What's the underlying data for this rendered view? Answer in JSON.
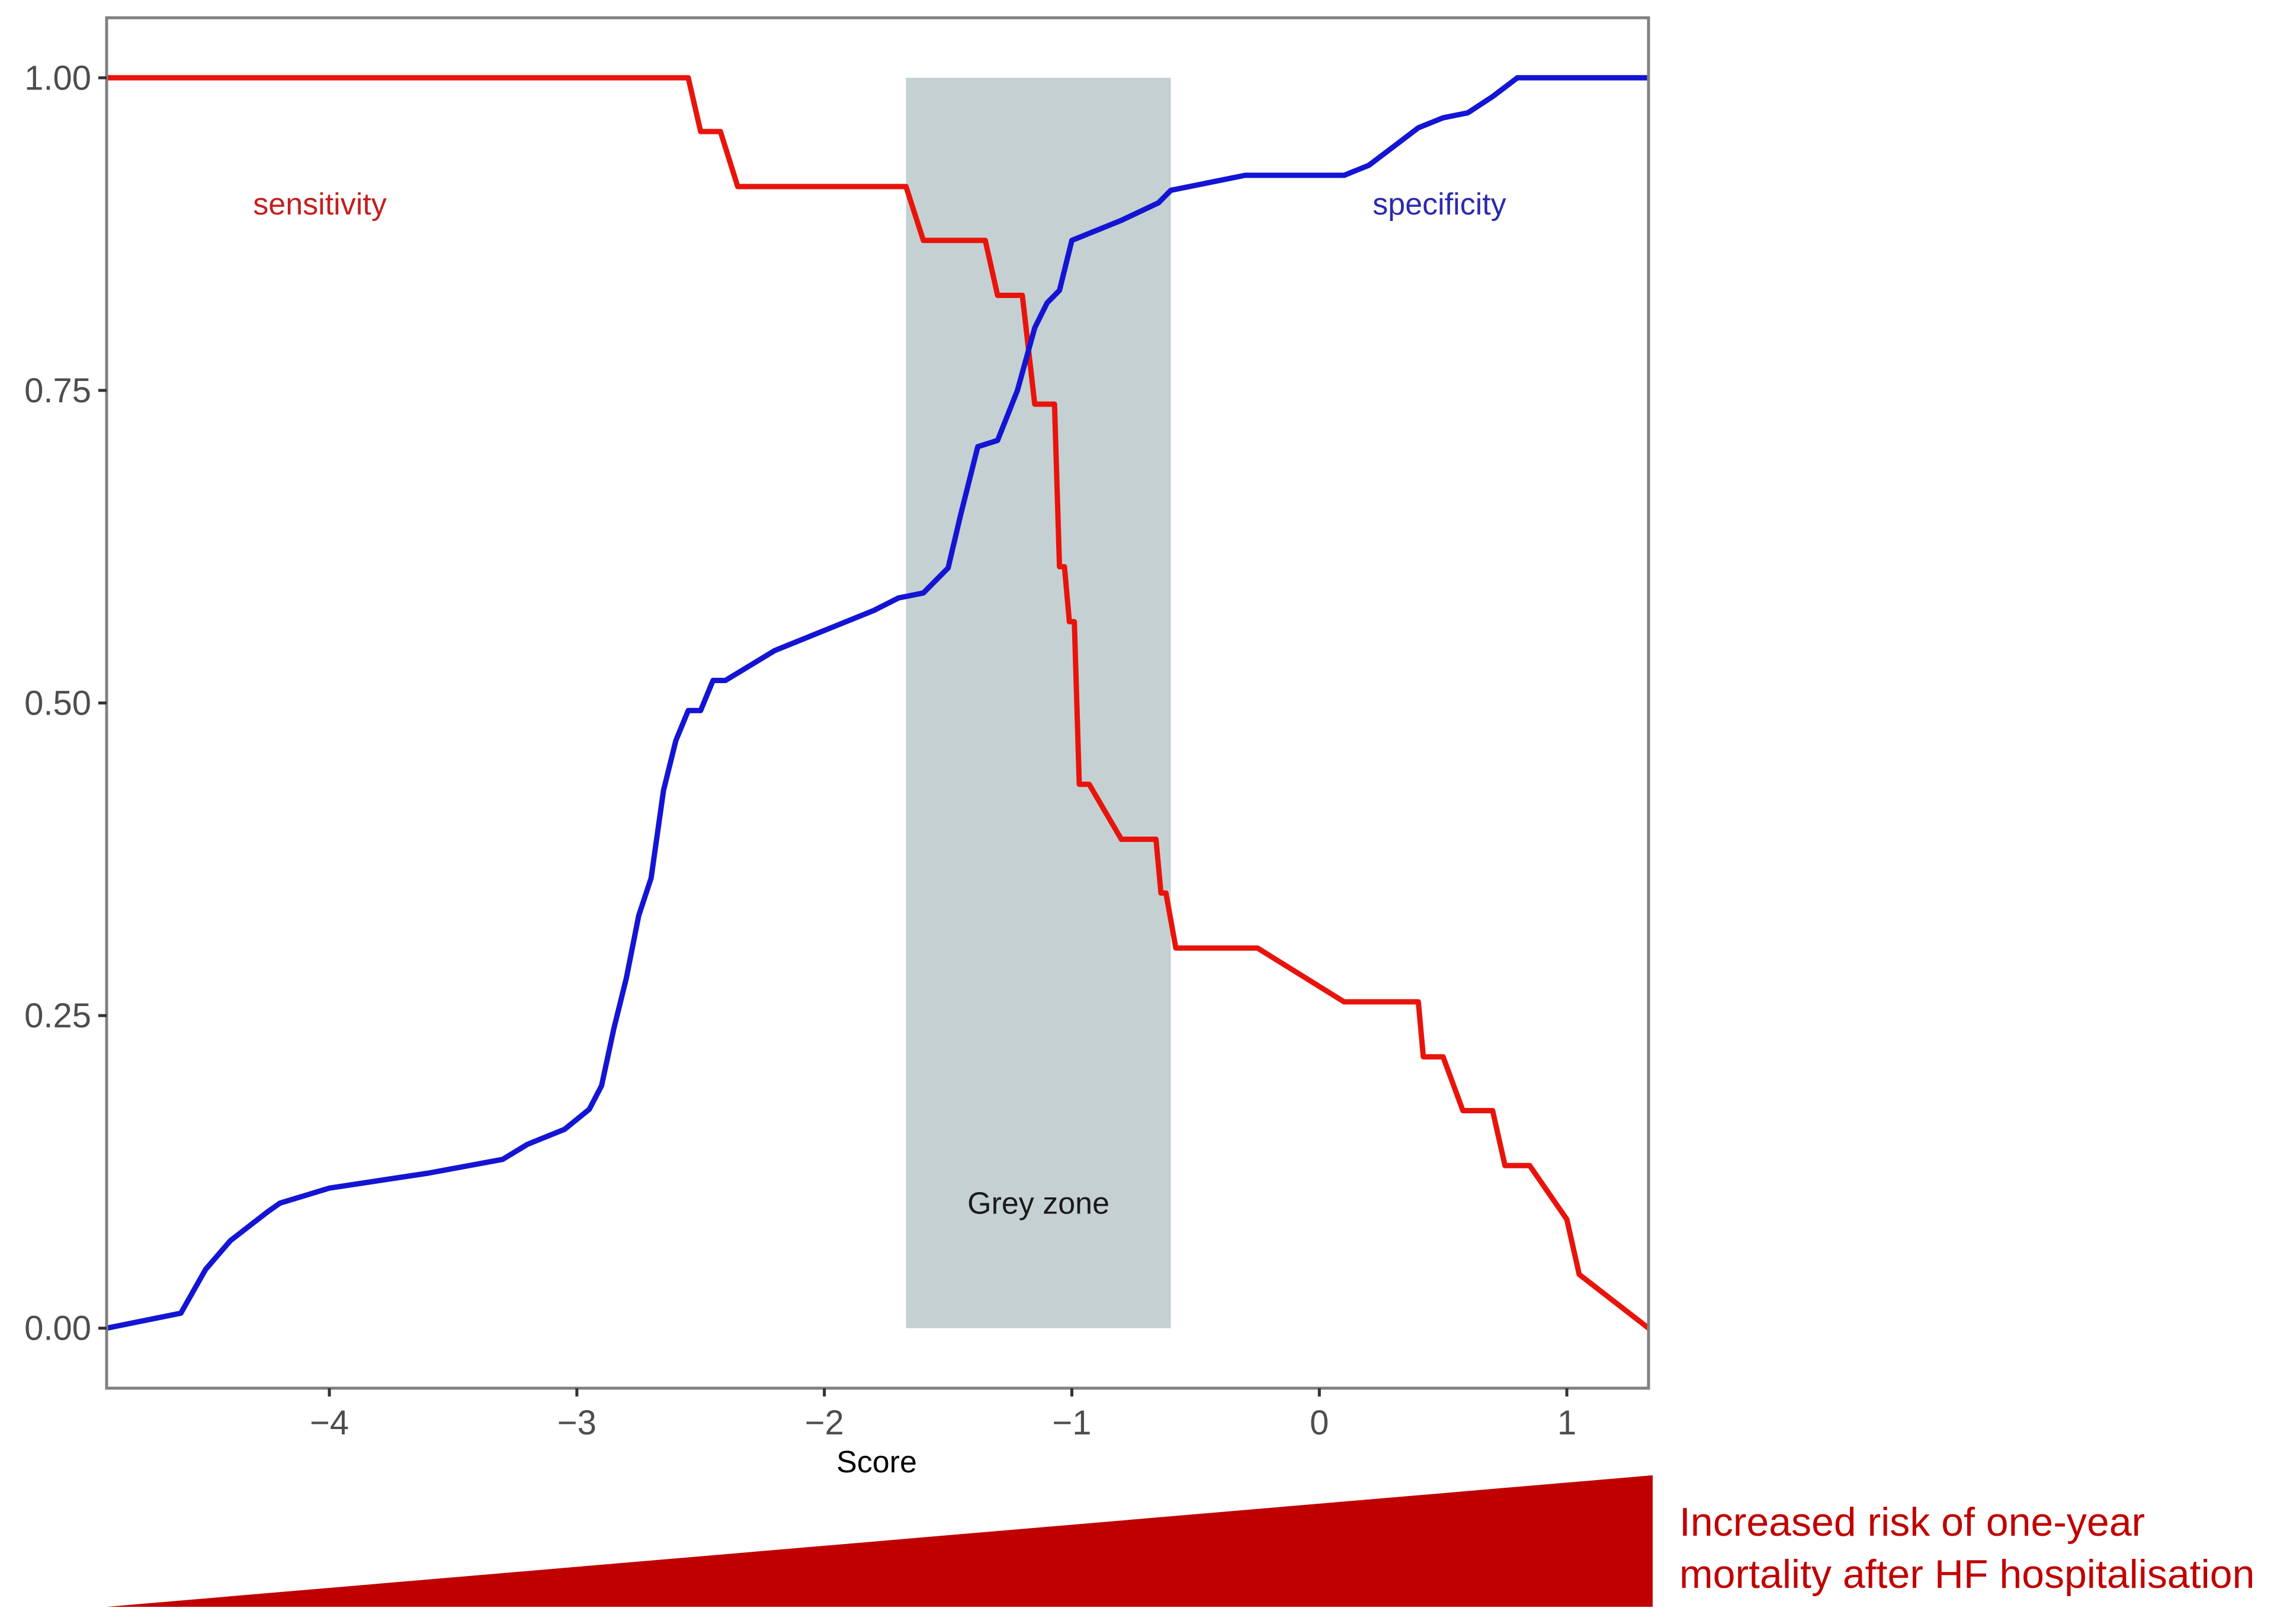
{
  "chart_data": {
    "type": "line",
    "title": "",
    "xlabel": "Score",
    "ylabel": "",
    "xlim": [
      -4.9,
      1.33
    ],
    "ylim": [
      -0.048,
      1.048
    ],
    "xticks": [
      -4,
      -3,
      -2,
      -1,
      0,
      1
    ],
    "xtick_labels": [
      "−4",
      "−3",
      "−2",
      "−1",
      "0",
      "1"
    ],
    "yticks": [
      0,
      0.25,
      0.5,
      0.75,
      1
    ],
    "ytick_labels": [
      "0.00",
      "0.25",
      "0.50",
      "0.75",
      "1.00"
    ],
    "grid": false,
    "series": [
      {
        "name": "sensitivity",
        "color": "#e8140c",
        "points": [
          [
            -4.9,
            1.0
          ],
          [
            -2.55,
            1.0
          ],
          [
            -2.5,
            0.957
          ],
          [
            -2.42,
            0.957
          ],
          [
            -2.35,
            0.913
          ],
          [
            -1.67,
            0.913
          ],
          [
            -1.6,
            0.87
          ],
          [
            -1.35,
            0.87
          ],
          [
            -1.3,
            0.826
          ],
          [
            -1.2,
            0.826
          ],
          [
            -1.15,
            0.739
          ],
          [
            -1.07,
            0.739
          ],
          [
            -1.05,
            0.609
          ],
          [
            -1.03,
            0.609
          ],
          [
            -1.01,
            0.565
          ],
          [
            -0.99,
            0.565
          ],
          [
            -0.97,
            0.435
          ],
          [
            -0.93,
            0.435
          ],
          [
            -0.8,
            0.391
          ],
          [
            -0.66,
            0.391
          ],
          [
            -0.64,
            0.348
          ],
          [
            -0.62,
            0.348
          ],
          [
            -0.58,
            0.304
          ],
          [
            -0.25,
            0.304
          ],
          [
            0.1,
            0.261
          ],
          [
            0.4,
            0.261
          ],
          [
            0.42,
            0.217
          ],
          [
            0.5,
            0.217
          ],
          [
            0.58,
            0.174
          ],
          [
            0.7,
            0.174
          ],
          [
            0.75,
            0.13
          ],
          [
            0.85,
            0.13
          ],
          [
            1.0,
            0.087
          ],
          [
            1.05,
            0.043
          ],
          [
            1.33,
            0.0
          ]
        ]
      },
      {
        "name": "specificity",
        "color": "#1414d4",
        "points": [
          [
            -4.9,
            0.0
          ],
          [
            -4.6,
            0.012
          ],
          [
            -4.5,
            0.047
          ],
          [
            -4.4,
            0.07
          ],
          [
            -4.25,
            0.093
          ],
          [
            -4.2,
            0.1
          ],
          [
            -4.0,
            0.112
          ],
          [
            -3.6,
            0.124
          ],
          [
            -3.3,
            0.135
          ],
          [
            -3.2,
            0.147
          ],
          [
            -3.05,
            0.159
          ],
          [
            -2.95,
            0.175
          ],
          [
            -2.9,
            0.194
          ],
          [
            -2.85,
            0.24
          ],
          [
            -2.8,
            0.28
          ],
          [
            -2.75,
            0.33
          ],
          [
            -2.7,
            0.36
          ],
          [
            -2.65,
            0.43
          ],
          [
            -2.6,
            0.47
          ],
          [
            -2.55,
            0.494
          ],
          [
            -2.5,
            0.494
          ],
          [
            -2.45,
            0.518
          ],
          [
            -2.4,
            0.518
          ],
          [
            -2.2,
            0.542
          ],
          [
            -2.0,
            0.558
          ],
          [
            -1.8,
            0.574
          ],
          [
            -1.7,
            0.584
          ],
          [
            -1.6,
            0.588
          ],
          [
            -1.5,
            0.608
          ],
          [
            -1.45,
            0.65
          ],
          [
            -1.38,
            0.705
          ],
          [
            -1.3,
            0.71
          ],
          [
            -1.22,
            0.75
          ],
          [
            -1.15,
            0.8
          ],
          [
            -1.1,
            0.82
          ],
          [
            -1.05,
            0.83
          ],
          [
            -1.0,
            0.87
          ],
          [
            -0.9,
            0.878
          ],
          [
            -0.8,
            0.886
          ],
          [
            -0.65,
            0.9
          ],
          [
            -0.6,
            0.91
          ],
          [
            -0.3,
            0.922
          ],
          [
            0.1,
            0.922
          ],
          [
            0.2,
            0.93
          ],
          [
            0.3,
            0.945
          ],
          [
            0.4,
            0.96
          ],
          [
            0.5,
            0.968
          ],
          [
            0.6,
            0.972
          ],
          [
            0.7,
            0.985
          ],
          [
            0.8,
            1.0
          ],
          [
            1.33,
            1.0
          ]
        ]
      }
    ],
    "shaded_region": {
      "x": [
        -1.67,
        -0.6
      ],
      "y": [
        0,
        1
      ],
      "color": "#c5d0d3",
      "label": "Grey zone"
    },
    "annotations": {
      "sensitivity_label": "sensitivity",
      "specificity_label": "specificity",
      "grey_zone_label": "Grey zone"
    },
    "risk_indicator": {
      "line1": "Increased risk of one-year",
      "line2": "mortality after HF hospitalisation",
      "color": "#c00000"
    }
  }
}
